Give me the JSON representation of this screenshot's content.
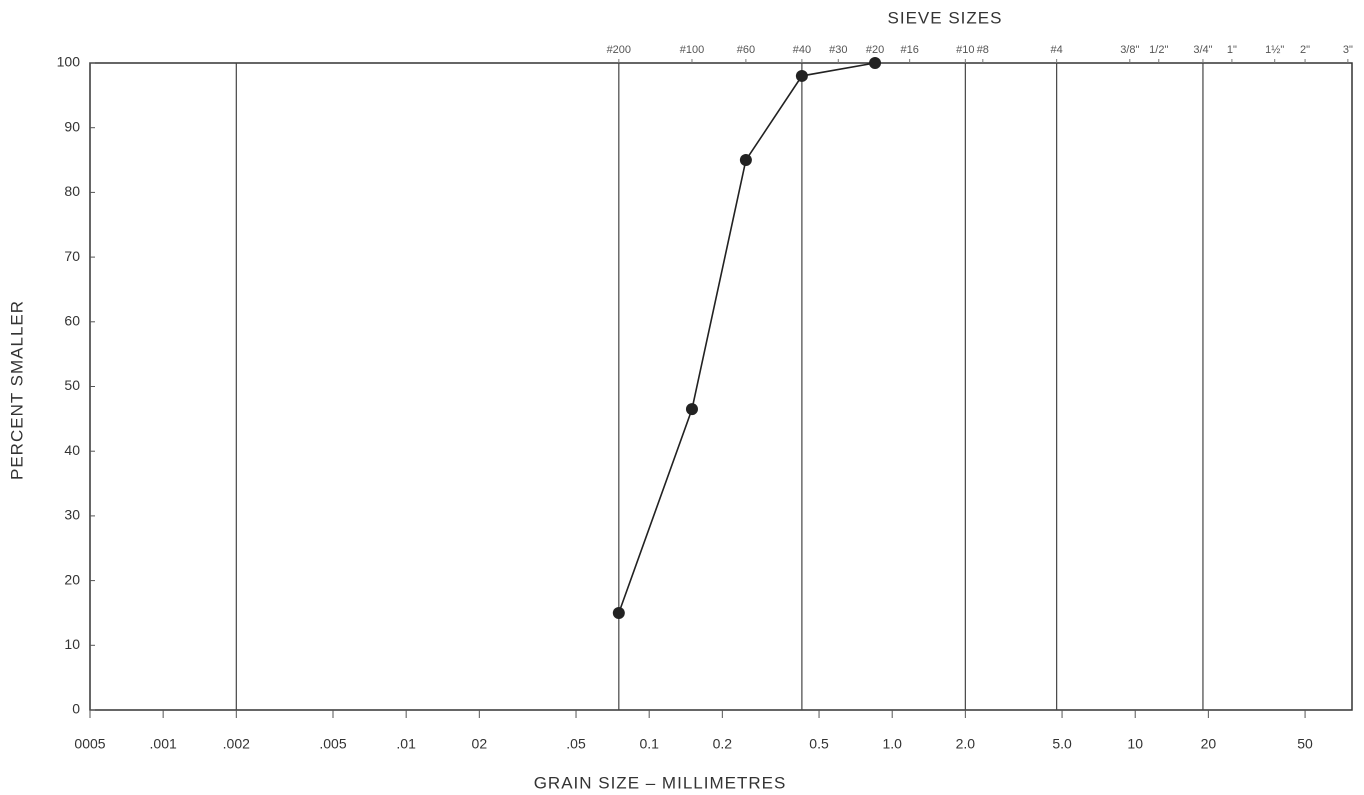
{
  "chart_data": {
    "type": "line",
    "title": "SIEVE SIZES",
    "xlabel": "GRAIN SIZE – MILLIMETRES",
    "ylabel": "PERCENT SMALLER",
    "xscale": "log",
    "xlim": [
      0.0005,
      78
    ],
    "ylim": [
      0,
      100
    ],
    "xticks": [
      {
        "value": 0.0005,
        "label": "0005"
      },
      {
        "value": 0.001,
        "label": ".001"
      },
      {
        "value": 0.002,
        "label": ".002"
      },
      {
        "value": 0.005,
        "label": ".005"
      },
      {
        "value": 0.01,
        "label": ".01"
      },
      {
        "value": 0.02,
        "label": "02"
      },
      {
        "value": 0.05,
        "label": ".05"
      },
      0.1,
      0.2,
      0.5,
      {
        "value": 1,
        "label": "1.0"
      },
      {
        "value": 2,
        "label": "2.0"
      },
      {
        "value": 5,
        "label": "5.0"
      },
      10,
      20,
      50
    ],
    "yticks": [
      0,
      10,
      20,
      30,
      40,
      50,
      60,
      70,
      80,
      90,
      100
    ],
    "x2ticks": [
      {
        "value": 0.075,
        "label": "#200"
      },
      {
        "value": 0.15,
        "label": "#100"
      },
      {
        "value": 0.25,
        "label": "#60"
      },
      {
        "value": 0.425,
        "label": "#40"
      },
      {
        "value": 0.6,
        "label": "#30"
      },
      {
        "value": 0.85,
        "label": "#20"
      },
      {
        "value": 1.18,
        "label": "#16"
      },
      {
        "value": 2.0,
        "label": "#10"
      },
      {
        "value": 2.36,
        "label": "#8"
      },
      {
        "value": 4.75,
        "label": "#4"
      },
      {
        "value": 9.5,
        "label": "3/8\""
      },
      {
        "value": 12.5,
        "label": "1/2\""
      },
      {
        "value": 19,
        "label": "3/4\""
      },
      {
        "value": 25,
        "label": "1\""
      },
      {
        "value": 37.5,
        "label": "1½\""
      },
      {
        "value": 50,
        "label": "2\""
      },
      {
        "value": 75,
        "label": "3\""
      }
    ],
    "xgrid": [
      0.002,
      0.075,
      0.425,
      2.0,
      4.75,
      19
    ],
    "color": "#222222",
    "x": [
      0.075,
      0.15,
      0.25,
      0.425,
      0.85
    ],
    "values": [
      15,
      46.5,
      85,
      98,
      100
    ]
  }
}
